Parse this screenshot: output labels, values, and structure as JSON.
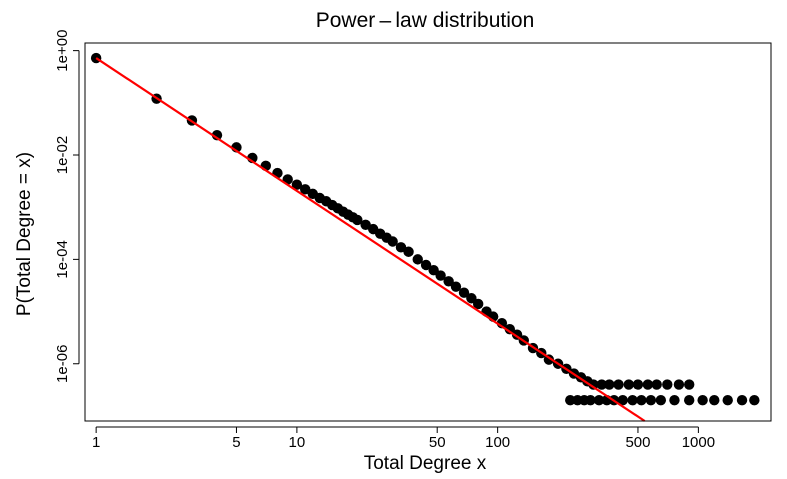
{
  "chart_data": {
    "type": "scatter",
    "title": "Power – law  distribution",
    "xlabel": "Total  Degree  x",
    "ylabel": "P(Total  Degree  =  x)",
    "x_scale": "log",
    "y_scale": "log",
    "xlim": [
      0.88,
      2300
    ],
    "ylim": [
      8e-08,
      1.4
    ],
    "x_ticks": [
      1,
      5,
      10,
      50,
      100,
      500,
      1000
    ],
    "x_tick_labels": [
      "1",
      "5",
      "10",
      "50",
      "100",
      "500",
      "1000"
    ],
    "y_ticks": [
      1,
      0.01,
      0.0001,
      1e-06
    ],
    "y_tick_labels": [
      "1e+00",
      "1e-02",
      "1e-04",
      "1e-06"
    ],
    "grid": false,
    "legend": "none",
    "colors": {
      "points": "#000000",
      "fit_line": "#ff0000",
      "frame": "#000000"
    },
    "fit_line": {
      "x": [
        1,
        540
      ],
      "y": [
        0.72,
        8e-08
      ]
    },
    "points_x": [
      1,
      2,
      3,
      4,
      5,
      6,
      7,
      8,
      9,
      10,
      11,
      12,
      13,
      14,
      15,
      16,
      17,
      18,
      19,
      20,
      22,
      24,
      26,
      28,
      30,
      33,
      36,
      40,
      44,
      48,
      52,
      57,
      62,
      68,
      74,
      80,
      88,
      95,
      105,
      115,
      125,
      135,
      150,
      165,
      180,
      200,
      220,
      240,
      260,
      280,
      300,
      330,
      360,
      400,
      450,
      500,
      560,
      620,
      700,
      800,
      900,
      1050,
      1200,
      1400,
      1650,
      1900,
      230,
      250,
      270,
      290,
      320,
      350,
      380,
      420,
      470,
      520,
      580,
      650,
      760,
      900
    ],
    "points_y": [
      0.72,
      0.12,
      0.046,
      0.024,
      0.014,
      0.0088,
      0.0062,
      0.0045,
      0.0034,
      0.0027,
      0.0022,
      0.0018,
      0.0015,
      0.0013,
      0.0011,
      0.00095,
      0.00082,
      0.00072,
      0.00064,
      0.00057,
      0.00046,
      0.00038,
      0.00031,
      0.00026,
      0.00022,
      0.00017,
      0.00014,
      0.0001,
      7.8e-05,
      6.2e-05,
      4.9e-05,
      3.8e-05,
      3e-05,
      2.3e-05,
      1.8e-05,
      1.4e-05,
      1e-05,
      8e-06,
      6e-06,
      4.6e-06,
      3.6e-06,
      2.8e-06,
      2e-06,
      1.6e-06,
      1.2e-06,
      1e-06,
      8e-07,
      6.5e-07,
      5.5e-07,
      4.6e-07,
      4e-07,
      4e-07,
      4e-07,
      4e-07,
      4e-07,
      4e-07,
      4e-07,
      4e-07,
      4e-07,
      4e-07,
      4e-07,
      2e-07,
      2e-07,
      2e-07,
      2e-07,
      2e-07,
      2e-07,
      2e-07,
      2e-07,
      2e-07,
      2e-07,
      2e-07,
      2e-07,
      2e-07,
      2e-07,
      2e-07,
      2e-07,
      2e-07,
      2e-07,
      2e-07
    ]
  }
}
